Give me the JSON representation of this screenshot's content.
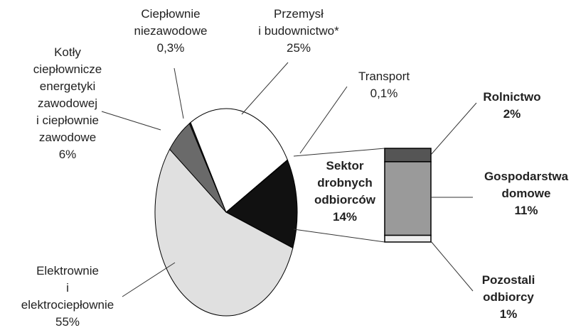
{
  "chart_data": {
    "type": "pie",
    "categories": [
      "Sektor\ndrobnych\nodbiorców",
      "Elektrownie\ni\nelektrociepłownie",
      "Kotły\nciepłownicze\nenergetyki\nzawodowej\ni ciepłownie\nzawodowe",
      "Ciepłownie\nniezawodowe",
      "Przemysł\ni budownictwo*",
      "Transport"
    ],
    "values": [
      14,
      55,
      6,
      0.3,
      25,
      0.1
    ],
    "value_labels": [
      "14%",
      "55%",
      "6%",
      "0,3%",
      "25%",
      "0,1%"
    ],
    "colors": [
      "#111111",
      "#e0e0e0",
      "#6a6a6a",
      "#222222",
      "#ffffff",
      "#999999"
    ],
    "breakdown": {
      "type": "bar",
      "categories": [
        "Rolnictwo",
        "Gospodarstwa\ndomowe",
        "Pozostali\nodbiorcy"
      ],
      "values": [
        2,
        11,
        1
      ],
      "value_labels": [
        "2%",
        "11%",
        "1%"
      ],
      "colors": [
        "#555555",
        "#9a9a9a",
        "#eeeeee"
      ]
    }
  }
}
